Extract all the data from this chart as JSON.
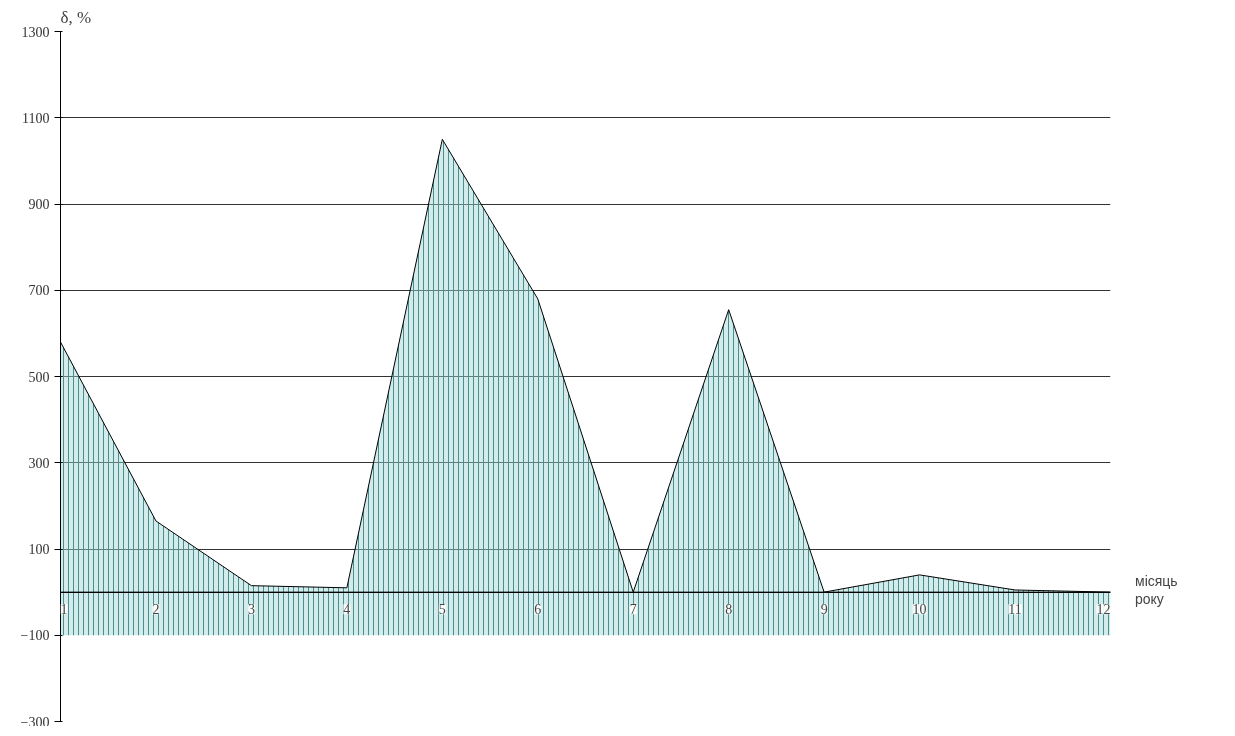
{
  "chart_data": {
    "type": "area",
    "ylabel": "δ, %",
    "xlabel": "місяць року",
    "x": [
      1,
      2,
      3,
      4,
      5,
      6,
      7,
      8,
      9,
      10,
      11,
      12
    ],
    "series": [
      {
        "color": "#9fd3d3",
        "values": [
          580,
          165,
          15,
          10,
          1050,
          680,
          0,
          655,
          0,
          40,
          5,
          0
        ]
      }
    ],
    "xlim": [
      1,
      12
    ],
    "xticks": [
      1,
      2,
      3,
      4,
      5,
      6,
      7,
      8,
      9,
      10,
      11,
      12
    ],
    "ylim": [
      -300,
      1300
    ],
    "yticks": [
      -300,
      -100,
      100,
      300,
      500,
      700,
      900,
      1100,
      1300
    ],
    "grid": "y",
    "bands": [
      {
        "axis": "y",
        "from": -100,
        "to": 0,
        "color": "#9fd3d3"
      }
    ]
  }
}
